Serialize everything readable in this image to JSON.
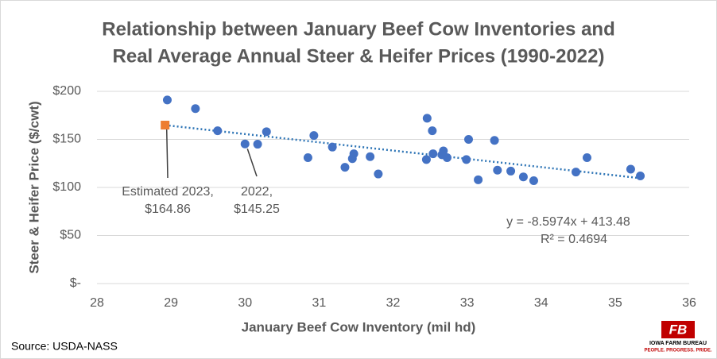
{
  "chart_data": {
    "type": "scatter",
    "title": [
      "Relationship between January Beef Cow Inventories and",
      "Real Average Annual Steer & Heifer Prices (1990-2022)"
    ],
    "x_label": "January  Beef Cow Inventory (mil hd)",
    "y_label": "Steer & Heifer Price ($/cwt)",
    "xlim": [
      28,
      36
    ],
    "xticks": [
      28,
      29,
      30,
      31,
      32,
      33,
      34,
      35,
      36
    ],
    "ylim": [
      0,
      200
    ],
    "yticks": [
      {
        "value": 0,
        "label": "$-"
      },
      {
        "value": 50,
        "label": "$50"
      },
      {
        "value": 100,
        "label": "$100"
      },
      {
        "value": 150,
        "label": "$150"
      },
      {
        "value": 200,
        "label": "$200"
      }
    ],
    "grid": true,
    "series": [
      {
        "color": "#4472c4",
        "x": [
          28.95,
          29.33,
          29.63,
          30.0,
          30.17,
          30.29,
          30.85,
          30.93,
          31.18,
          31.35,
          31.45,
          31.47,
          31.69,
          31.8,
          32.46,
          32.53,
          32.45,
          32.54,
          32.66,
          32.68,
          32.73,
          32.99,
          33.02,
          33.15,
          33.37,
          33.41,
          33.59,
          33.76,
          33.9,
          34.47,
          34.62,
          35.21,
          35.34
        ],
        "values": [
          191,
          182,
          159,
          145.25,
          145,
          158,
          131,
          154,
          142,
          121,
          130,
          135,
          132,
          114,
          172,
          159,
          129,
          135,
          134,
          138,
          131,
          129,
          150,
          108,
          149,
          118,
          117,
          111,
          107,
          116,
          131,
          119,
          112
        ]
      },
      {
        "color": "#ed7d31",
        "x": [
          28.92
        ],
        "values": [
          164.86
        ]
      }
    ],
    "trendline": {
      "color": "#2e75b6",
      "slope": -8.5974,
      "intercept": 413.48,
      "equation": "y = -8.5974x + 413.48",
      "r2": "R² = 0.4694"
    },
    "annotations": [
      {
        "lines": [
          "Estimated 2023,",
          "$164.86"
        ]
      },
      {
        "lines": [
          "2022,",
          "$145.25"
        ]
      }
    ],
    "source": "Source: USDA-NASS",
    "logo": {
      "name": "IOWA FARM BUREAU",
      "tagline": "PEOPLE. PROGRESS. PRIDE."
    }
  }
}
